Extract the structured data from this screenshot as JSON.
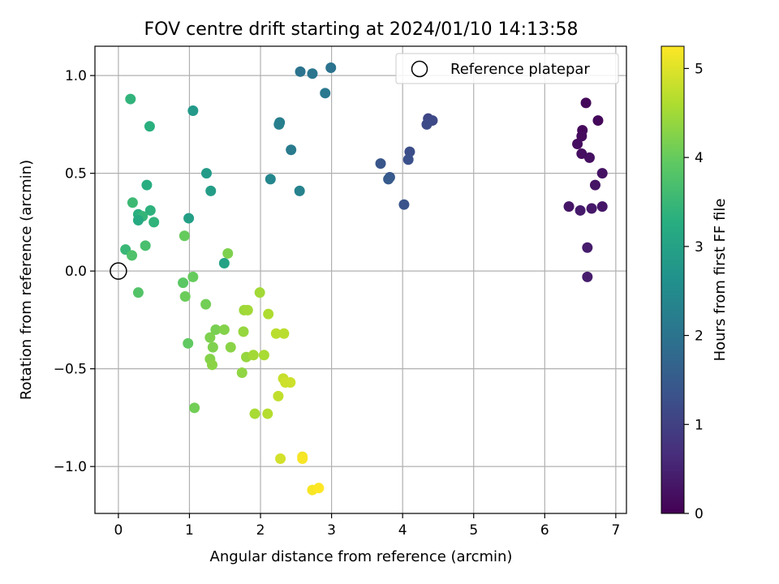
{
  "chart_data": {
    "type": "scatter",
    "title": "FOV centre drift starting at 2024/01/10 14:13:58",
    "xlabel": "Angular distance from reference (arcmin)",
    "ylabel": "Rotation from reference (arcmin)",
    "xlim": [
      -0.33,
      7.15
    ],
    "ylim": [
      -1.24,
      1.15
    ],
    "xticks": [
      0,
      1,
      2,
      3,
      4,
      5,
      6,
      7
    ],
    "xtick_labels": [
      "0",
      "1",
      "2",
      "3",
      "4",
      "5",
      "6",
      "7"
    ],
    "yticks": [
      -1.0,
      -0.5,
      0.0,
      0.5,
      1.0
    ],
    "ytick_labels": [
      "−1.0",
      "−0.5",
      "0.0",
      "0.5",
      "1.0"
    ],
    "grid": true,
    "legend": {
      "position": "top-right",
      "entries": [
        "Reference platepar"
      ]
    },
    "colorbar": {
      "label": "Hours from first FF file",
      "colormap": "viridis",
      "range": [
        0,
        5.25
      ],
      "ticks": [
        0,
        1,
        2,
        3,
        4,
        5
      ],
      "tick_labels": [
        "0",
        "1",
        "2",
        "3",
        "4",
        "5"
      ]
    },
    "reference_point": {
      "x": 0,
      "y": 0
    },
    "points": [
      {
        "x": 6.58,
        "y": 0.86,
        "c": 0.1
      },
      {
        "x": 6.75,
        "y": 0.77,
        "c": 0.1
      },
      {
        "x": 6.53,
        "y": 0.72,
        "c": 0.12
      },
      {
        "x": 6.52,
        "y": 0.69,
        "c": 0.15
      },
      {
        "x": 6.46,
        "y": 0.65,
        "c": 0.18
      },
      {
        "x": 6.52,
        "y": 0.6,
        "c": 0.2
      },
      {
        "x": 6.63,
        "y": 0.58,
        "c": 0.22
      },
      {
        "x": 6.81,
        "y": 0.5,
        "c": 0.25
      },
      {
        "x": 6.71,
        "y": 0.44,
        "c": 0.28
      },
      {
        "x": 6.34,
        "y": 0.33,
        "c": 0.3
      },
      {
        "x": 6.81,
        "y": 0.33,
        "c": 0.32
      },
      {
        "x": 6.66,
        "y": 0.32,
        "c": 0.35
      },
      {
        "x": 6.5,
        "y": 0.31,
        "c": 0.38
      },
      {
        "x": 6.6,
        "y": 0.12,
        "c": 0.4
      },
      {
        "x": 6.6,
        "y": -0.03,
        "c": 0.42
      },
      {
        "x": 4.36,
        "y": 0.78,
        "c": 1.1
      },
      {
        "x": 4.42,
        "y": 0.77,
        "c": 1.15
      },
      {
        "x": 4.34,
        "y": 0.75,
        "c": 1.2
      },
      {
        "x": 4.1,
        "y": 0.61,
        "c": 1.25
      },
      {
        "x": 4.08,
        "y": 0.57,
        "c": 1.3
      },
      {
        "x": 3.69,
        "y": 0.55,
        "c": 1.4
      },
      {
        "x": 3.82,
        "y": 0.48,
        "c": 1.45
      },
      {
        "x": 3.8,
        "y": 0.47,
        "c": 1.5
      },
      {
        "x": 4.02,
        "y": 0.34,
        "c": 1.35
      },
      {
        "x": 2.56,
        "y": 1.02,
        "c": 2.0
      },
      {
        "x": 2.73,
        "y": 1.01,
        "c": 2.05
      },
      {
        "x": 2.99,
        "y": 1.04,
        "c": 2.0
      },
      {
        "x": 2.91,
        "y": 0.91,
        "c": 2.1
      },
      {
        "x": 2.27,
        "y": 0.76,
        "c": 2.2
      },
      {
        "x": 2.26,
        "y": 0.75,
        "c": 2.25
      },
      {
        "x": 2.43,
        "y": 0.62,
        "c": 2.15
      },
      {
        "x": 2.14,
        "y": 0.47,
        "c": 2.4
      },
      {
        "x": 2.55,
        "y": 0.41,
        "c": 2.3
      },
      {
        "x": 1.05,
        "y": 0.82,
        "c": 2.8
      },
      {
        "x": 1.24,
        "y": 0.5,
        "c": 2.85
      },
      {
        "x": 1.3,
        "y": 0.41,
        "c": 2.9
      },
      {
        "x": 0.99,
        "y": 0.27,
        "c": 2.95
      },
      {
        "x": 1.49,
        "y": 0.04,
        "c": 3.0
      },
      {
        "x": 0.17,
        "y": 0.88,
        "c": 3.4
      },
      {
        "x": 0.44,
        "y": 0.74,
        "c": 3.3
      },
      {
        "x": 0.4,
        "y": 0.44,
        "c": 3.25
      },
      {
        "x": 0.2,
        "y": 0.35,
        "c": 3.55
      },
      {
        "x": 0.45,
        "y": 0.31,
        "c": 3.35
      },
      {
        "x": 0.28,
        "y": 0.29,
        "c": 3.3
      },
      {
        "x": 0.34,
        "y": 0.28,
        "c": 3.45
      },
      {
        "x": 0.28,
        "y": 0.26,
        "c": 3.2
      },
      {
        "x": 0.5,
        "y": 0.25,
        "c": 3.4
      },
      {
        "x": 0.38,
        "y": 0.13,
        "c": 3.7
      },
      {
        "x": 0.1,
        "y": 0.11,
        "c": 3.5
      },
      {
        "x": 0.19,
        "y": 0.08,
        "c": 3.75
      },
      {
        "x": 0.28,
        "y": -0.11,
        "c": 3.8
      },
      {
        "x": 0.93,
        "y": 0.18,
        "c": 4.0
      },
      {
        "x": 1.54,
        "y": 0.09,
        "c": 4.2
      },
      {
        "x": 1.05,
        "y": -0.03,
        "c": 4.0
      },
      {
        "x": 0.91,
        "y": -0.06,
        "c": 3.9
      },
      {
        "x": 0.94,
        "y": -0.13,
        "c": 4.05
      },
      {
        "x": 0.98,
        "y": -0.37,
        "c": 3.95
      },
      {
        "x": 1.07,
        "y": -0.7,
        "c": 4.1
      },
      {
        "x": 1.23,
        "y": -0.17,
        "c": 4.1
      },
      {
        "x": 1.29,
        "y": -0.34,
        "c": 4.2
      },
      {
        "x": 1.37,
        "y": -0.3,
        "c": 4.15
      },
      {
        "x": 1.49,
        "y": -0.3,
        "c": 4.25
      },
      {
        "x": 1.33,
        "y": -0.39,
        "c": 4.2
      },
      {
        "x": 1.58,
        "y": -0.39,
        "c": 4.3
      },
      {
        "x": 1.29,
        "y": -0.45,
        "c": 4.25
      },
      {
        "x": 1.32,
        "y": -0.48,
        "c": 4.3
      },
      {
        "x": 1.74,
        "y": -0.52,
        "c": 4.35
      },
      {
        "x": 1.76,
        "y": -0.31,
        "c": 4.4
      },
      {
        "x": 1.77,
        "y": -0.2,
        "c": 4.45
      },
      {
        "x": 1.82,
        "y": -0.2,
        "c": 4.5
      },
      {
        "x": 1.8,
        "y": -0.44,
        "c": 4.4
      },
      {
        "x": 1.9,
        "y": -0.43,
        "c": 4.5
      },
      {
        "x": 1.92,
        "y": -0.73,
        "c": 4.55
      },
      {
        "x": 1.99,
        "y": -0.11,
        "c": 4.5
      },
      {
        "x": 2.05,
        "y": -0.43,
        "c": 4.55
      },
      {
        "x": 2.11,
        "y": -0.22,
        "c": 4.6
      },
      {
        "x": 2.1,
        "y": -0.73,
        "c": 4.65
      },
      {
        "x": 2.22,
        "y": -0.32,
        "c": 4.7
      },
      {
        "x": 2.33,
        "y": -0.32,
        "c": 4.7
      },
      {
        "x": 2.25,
        "y": -0.64,
        "c": 4.75
      },
      {
        "x": 2.32,
        "y": -0.55,
        "c": 4.8
      },
      {
        "x": 2.35,
        "y": -0.57,
        "c": 4.85
      },
      {
        "x": 2.42,
        "y": -0.57,
        "c": 4.85
      },
      {
        "x": 2.28,
        "y": -0.96,
        "c": 4.9
      },
      {
        "x": 2.59,
        "y": -0.95,
        "c": 5.15
      },
      {
        "x": 2.59,
        "y": -0.96,
        "c": 5.2
      },
      {
        "x": 2.73,
        "y": -1.12,
        "c": 5.2
      },
      {
        "x": 2.82,
        "y": -1.11,
        "c": 5.25
      }
    ]
  }
}
